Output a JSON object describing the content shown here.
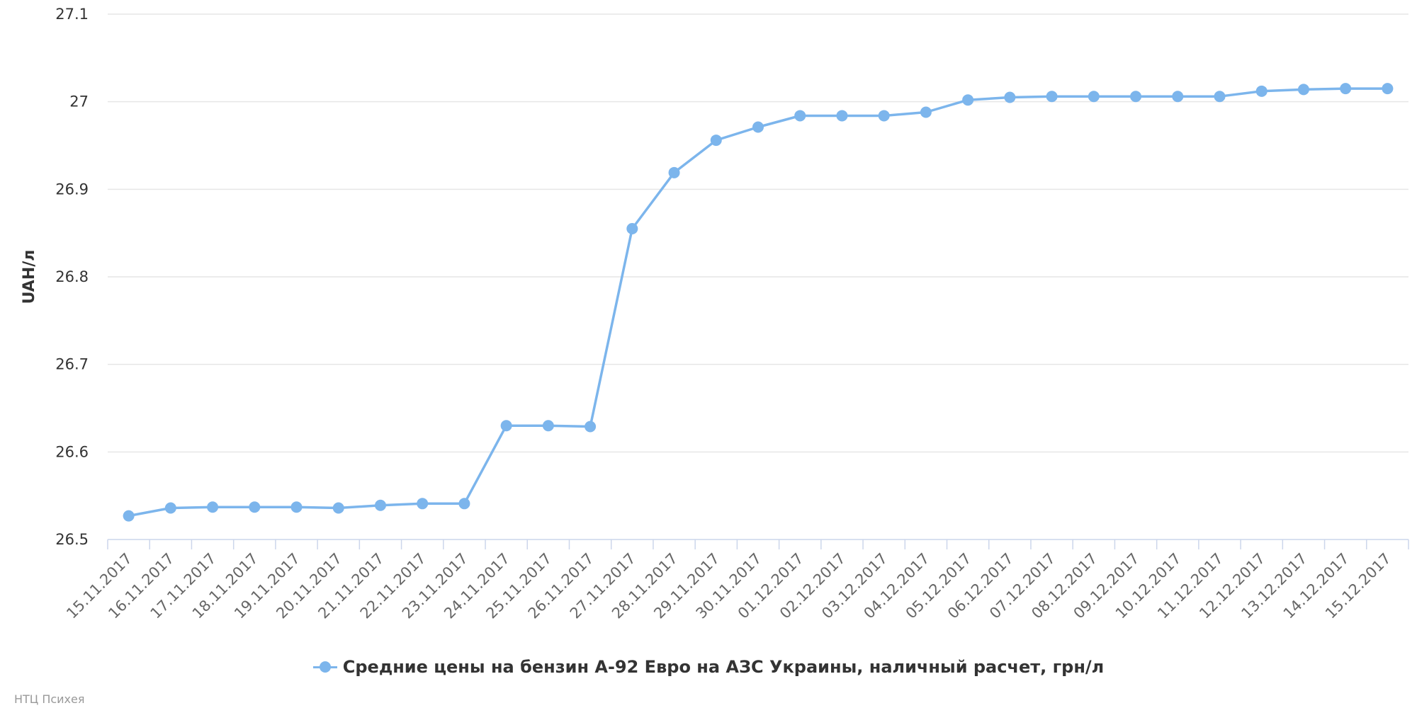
{
  "chart_data": {
    "type": "line",
    "title": "",
    "xlabel": "",
    "ylabel": "UAH/л",
    "ylim": [
      26.5,
      27.1
    ],
    "yticks": [
      26.5,
      26.6,
      26.7,
      26.8,
      26.9,
      27,
      27.1
    ],
    "ytick_labels": [
      "26.5",
      "26.6",
      "26.7",
      "26.8",
      "26.9",
      "27",
      "27.1"
    ],
    "grid": true,
    "legend_position": "bottom-center",
    "categories": [
      "15.11.2017",
      "16.11.2017",
      "17.11.2017",
      "18.11.2017",
      "19.11.2017",
      "20.11.2017",
      "21.11.2017",
      "22.11.2017",
      "23.11.2017",
      "24.11.2017",
      "25.11.2017",
      "26.11.2017",
      "27.11.2017",
      "28.11.2017",
      "29.11.2017",
      "30.11.2017",
      "01.12.2017",
      "02.12.2017",
      "03.12.2017",
      "04.12.2017",
      "05.12.2017",
      "06.12.2017",
      "07.12.2017",
      "08.12.2017",
      "09.12.2017",
      "10.12.2017",
      "11.12.2017",
      "12.12.2017",
      "13.12.2017",
      "14.12.2017",
      "15.12.2017"
    ],
    "series": [
      {
        "name": "Средние цены на бензин А-92 Евро на АЗС Украины, наличный расчет, грн/л",
        "color": "#7cb5ec",
        "values": [
          26.527,
          26.536,
          26.537,
          26.537,
          26.537,
          26.536,
          26.539,
          26.541,
          26.541,
          26.63,
          26.63,
          26.629,
          26.855,
          26.919,
          26.956,
          26.971,
          26.984,
          26.984,
          26.984,
          26.988,
          27.002,
          27.005,
          27.006,
          27.006,
          27.006,
          27.006,
          27.006,
          27.012,
          27.014,
          27.015,
          27.015
        ]
      }
    ]
  },
  "credits": "НТЦ Психея"
}
